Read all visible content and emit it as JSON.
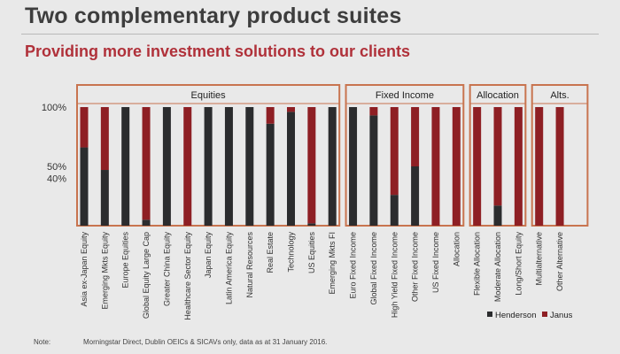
{
  "page": {
    "title": "Two complementary product suites",
    "subtitle": "Providing more investment solutions to our clients",
    "note_label": "Note:",
    "note_text": "Morningstar Direct, Dublin OEICs & SICAVs only, data as at 31 January 2016."
  },
  "colors": {
    "henderson": "#2b2c2e",
    "janus": "#8e1f24",
    "group_border": "#c8744f",
    "axis_text": "#333333"
  },
  "chart_data": {
    "type": "bar",
    "stacked": true,
    "percent": true,
    "title": "",
    "xlabel": "",
    "ylabel": "",
    "ylim": [
      0,
      100
    ],
    "yticks": [
      {
        "value": 100,
        "label": "100%"
      },
      {
        "value": 50,
        "label": "50%"
      },
      {
        "value": 40,
        "label": "40%"
      }
    ],
    "legend_position": "bottom-right",
    "grid": false,
    "groups": [
      {
        "name": "Equities",
        "start": 0,
        "end": 12
      },
      {
        "name": "Fixed Income",
        "start": 13,
        "end": 18
      },
      {
        "name": "Allocation",
        "start": 19,
        "end": 21
      },
      {
        "name": "Alts.",
        "start": 22,
        "end": 24
      }
    ],
    "categories": [
      "Asia ex-Japan Equity",
      "Emerging Mkts Equity",
      "Europe Equities",
      "Global Equity Large Cap",
      "Greater China Equity",
      "Healthcare Sector Equity",
      "Japan Equity",
      "Latin America Equity",
      "Natural Resources",
      "Real Estate",
      "Technology",
      "US Equities",
      "Emerging Mkts FI",
      "Euro Fixed Income",
      "Global Fixed Income",
      "High Yield Fixed Income",
      "Other Fixed Income",
      "US Fixed Income",
      "Allocation",
      "Flexible Allocation",
      "Moderate Allocation",
      "Long/Short Equity",
      "Multialternative",
      "Other Alternative"
    ],
    "series": [
      {
        "name": "Henderson",
        "values": [
          66,
          47,
          100,
          5,
          100,
          0,
          100,
          100,
          100,
          86,
          96,
          2,
          100,
          100,
          93,
          26,
          50,
          0,
          0,
          0,
          17,
          0,
          0,
          0
        ]
      },
      {
        "name": "Janus",
        "values": [
          34,
          53,
          0,
          95,
          0,
          100,
          0,
          0,
          0,
          14,
          4,
          98,
          0,
          0,
          7,
          74,
          50,
          100,
          100,
          100,
          83,
          100,
          100,
          100
        ]
      }
    ]
  }
}
